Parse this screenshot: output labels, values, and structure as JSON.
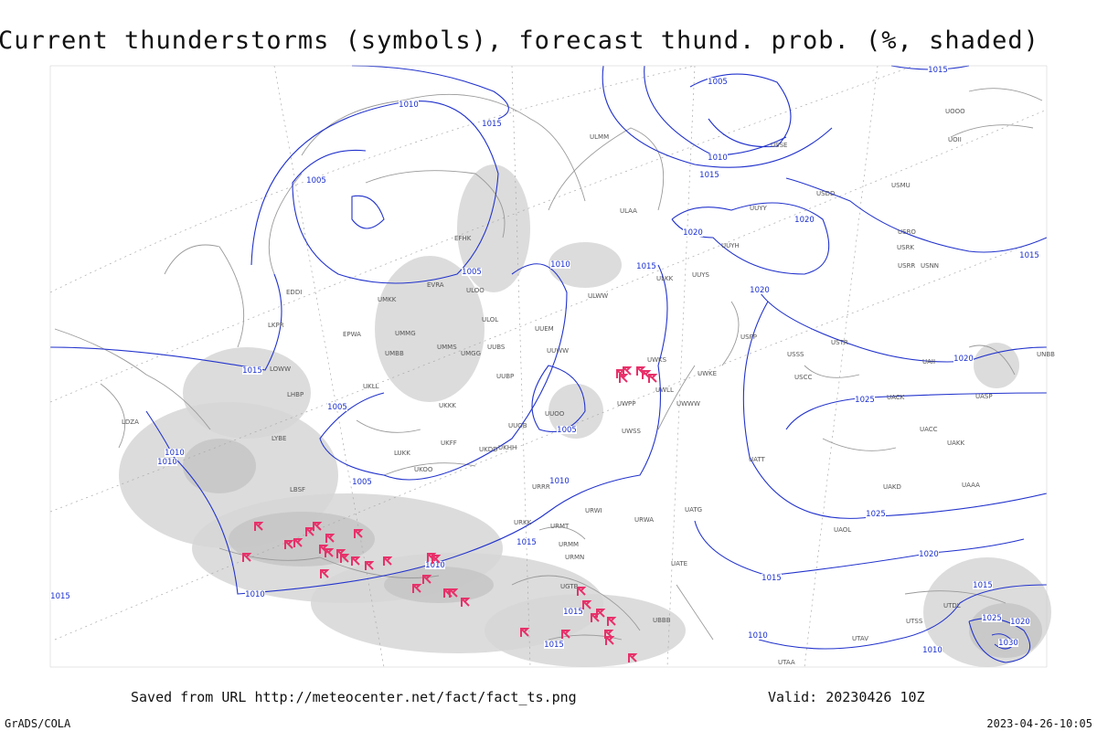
{
  "title": "Current thunderstorms (symbols), forecast thund. prob. (%, shaded)",
  "footer": {
    "saved": "Saved from URL http://meteocenter.net/fact/fact_ts.png",
    "valid": "Valid: 20230426 10Z",
    "credit": "GrADS/COLA",
    "timestamp": "2023-04-26-10:05"
  },
  "isobar_labels": [
    "1010",
    "1015",
    "1005",
    "1005",
    "1010",
    "1015",
    "1015",
    "1005",
    "1005",
    "1010",
    "1010",
    "1005",
    "1010",
    "1015",
    "1010",
    "1010",
    "1015",
    "1015",
    "1005",
    "1010",
    "1015",
    "1020",
    "1020",
    "1015",
    "1020",
    "1020",
    "1025",
    "1025",
    "1020",
    "1015",
    "1010",
    "1015",
    "1025",
    "1020",
    "1030",
    "1010",
    "1015",
    "1015"
  ],
  "stations": [
    "EFHK",
    "EVRA",
    "ULOO",
    "ULOL",
    "UMKK",
    "EDDI",
    "EPWA",
    "UMMG",
    "UMBB",
    "UMMS",
    "UMGG",
    "UUBS",
    "UUBP",
    "UKKK",
    "UUOB",
    "UKHH",
    "UKFF",
    "UKOO",
    "UKDD",
    "LUKK",
    "LBSF",
    "LYBE",
    "LDZA",
    "LHBP",
    "LOWW",
    "LKPR",
    "UKLL",
    "UUEM",
    "UUWW",
    "UUOO",
    "UWPP",
    "UWSS",
    "UWWW",
    "UWKS",
    "UWKE",
    "UWLL",
    "URRR",
    "URWI",
    "URKK",
    "URMT",
    "URMM",
    "URMN",
    "URWA",
    "UATG",
    "UATE",
    "UGTB",
    "UBBB",
    "UUYY",
    "UUYH",
    "ULAA",
    "ULWW",
    "ULMM",
    "ULKK",
    "UUYS",
    "USRR",
    "USNN",
    "USRK",
    "USRO",
    "USCC",
    "USSS",
    "UACK",
    "UAAA",
    "UATT",
    "UAOL",
    "UACC",
    "UAKK",
    "UAKD",
    "UASP",
    "UAII",
    "UTSS",
    "UTAA",
    "UTAV",
    "UTDL",
    "UNBB",
    "USSE",
    "USDD",
    "USMU",
    "UOOO",
    "UOII",
    "USTR",
    "USPP"
  ]
}
